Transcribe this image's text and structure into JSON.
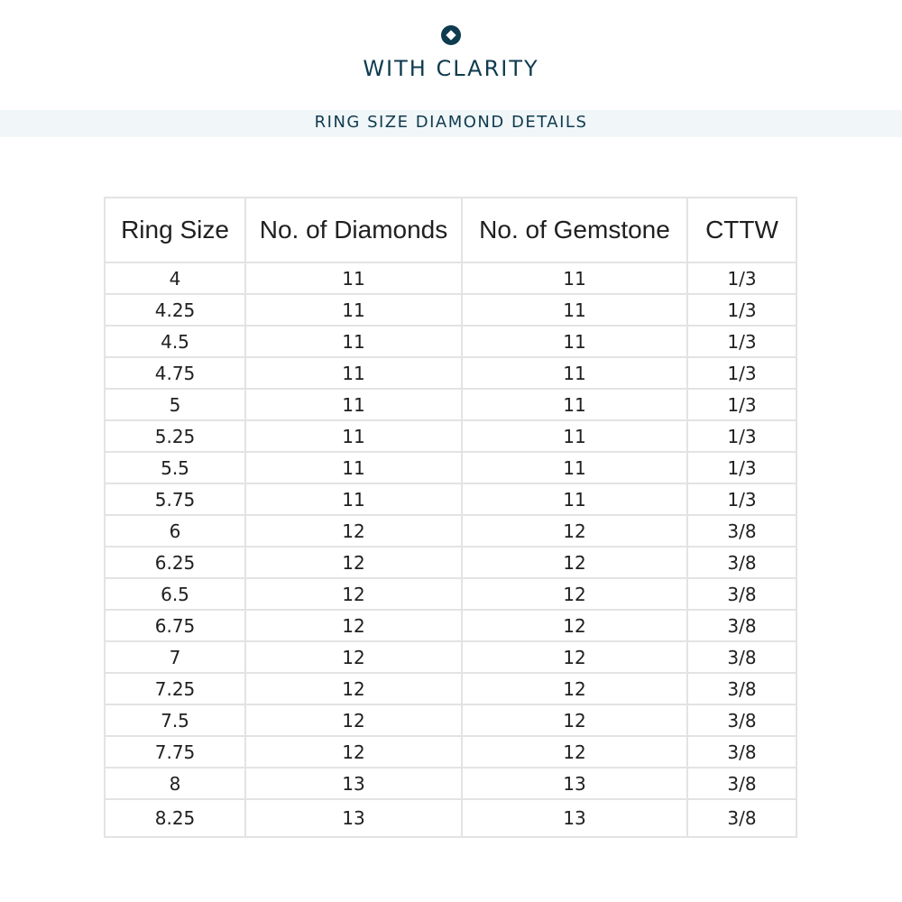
{
  "brand": {
    "name": "WITH CLARITY"
  },
  "subtitle": "RING SIZE DIAMOND DETAILS",
  "table": {
    "headers": [
      "Ring Size",
      "No. of Diamonds",
      "No. of Gemstone",
      "CTTW"
    ],
    "rows": [
      [
        "4",
        "11",
        "11",
        "1/3"
      ],
      [
        "4.25",
        "11",
        "11",
        "1/3"
      ],
      [
        "4.5",
        "11",
        "11",
        "1/3"
      ],
      [
        "4.75",
        "11",
        "11",
        "1/3"
      ],
      [
        "5",
        "11",
        "11",
        "1/3"
      ],
      [
        "5.25",
        "11",
        "11",
        "1/3"
      ],
      [
        "5.5",
        "11",
        "11",
        "1/3"
      ],
      [
        "5.75",
        "11",
        "11",
        "1/3"
      ],
      [
        "6",
        "12",
        "12",
        "3/8"
      ],
      [
        "6.25",
        "12",
        "12",
        "3/8"
      ],
      [
        "6.5",
        "12",
        "12",
        "3/8"
      ],
      [
        "6.75",
        "12",
        "12",
        "3/8"
      ],
      [
        "7",
        "12",
        "12",
        "3/8"
      ],
      [
        "7.25",
        "12",
        "12",
        "3/8"
      ],
      [
        "7.5",
        "12",
        "12",
        "3/8"
      ],
      [
        "7.75",
        "12",
        "12",
        "3/8"
      ],
      [
        "8",
        "13",
        "13",
        "3/8"
      ],
      [
        "8.25",
        "13",
        "13",
        "3/8"
      ]
    ]
  },
  "colors": {
    "brand": "#0f3b4f",
    "band": "#f1f6f8",
    "grid": "#e3e3e3"
  }
}
